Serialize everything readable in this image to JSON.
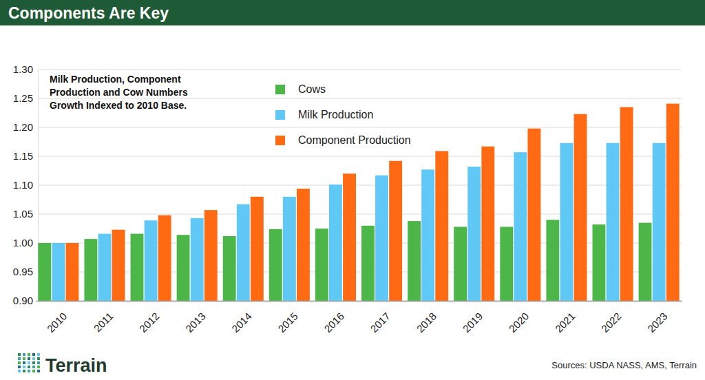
{
  "chart_data": {
    "type": "bar",
    "title": "Components Are Key",
    "subtitle": [
      "Milk Production, Component",
      "Production and Cow Numbers",
      "Growth Indexed to 2010 Base."
    ],
    "source": "Sources: USDA NASS, AMS, Terrain",
    "logo": "Terrain",
    "categories": [
      "2010",
      "2011",
      "2012",
      "2013",
      "2014",
      "2015",
      "2016",
      "2017",
      "2018",
      "2019",
      "2020",
      "2021",
      "2022",
      "2023"
    ],
    "series": [
      {
        "name": "Cows",
        "color": "#4cb748",
        "values": [
          1.0,
          1.007,
          1.016,
          1.014,
          1.012,
          1.024,
          1.025,
          1.03,
          1.038,
          1.028,
          1.028,
          1.04,
          1.032,
          1.035
        ]
      },
      {
        "name": "Milk Production",
        "color": "#5fc8f5",
        "values": [
          1.0,
          1.016,
          1.039,
          1.043,
          1.067,
          1.08,
          1.101,
          1.117,
          1.127,
          1.132,
          1.157,
          1.173,
          1.173,
          1.173
        ]
      },
      {
        "name": "Component Production",
        "color": "#ff6a13",
        "values": [
          1.0,
          1.023,
          1.048,
          1.057,
          1.08,
          1.094,
          1.12,
          1.142,
          1.159,
          1.167,
          1.198,
          1.223,
          1.235,
          1.241
        ]
      }
    ],
    "ylim": [
      0.9,
      1.3
    ],
    "yticks": [
      {
        "value": 0.9,
        "label": "0.90"
      },
      0.95,
      {
        "value": 1.0,
        "label": "1.00"
      },
      1.05,
      {
        "value": 1.1,
        "label": "1.10"
      },
      1.15,
      {
        "value": 1.2,
        "label": "1.20"
      },
      1.25,
      {
        "value": 1.3,
        "label": "1.30"
      }
    ],
    "grid": true,
    "legend": "top"
  }
}
